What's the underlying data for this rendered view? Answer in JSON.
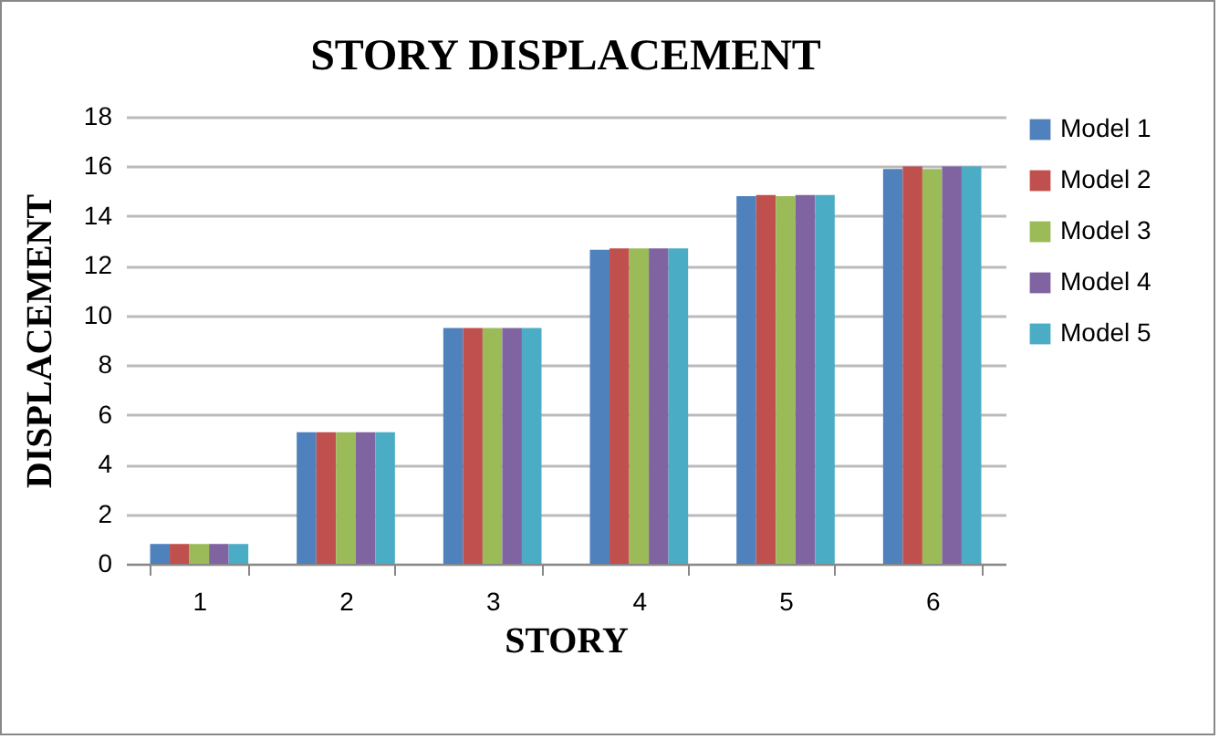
{
  "chart_data": {
    "type": "bar",
    "title": "STORY DISPLACEMENT",
    "xlabel": "STORY",
    "ylabel": "DISPLACEMENT",
    "categories": [
      "1",
      "2",
      "3",
      "4",
      "5",
      "6"
    ],
    "series": [
      {
        "name": "Model 1",
        "color": "#4f81bd",
        "values": [
          0.8,
          5.3,
          9.5,
          12.65,
          14.8,
          15.9
        ]
      },
      {
        "name": "Model 2",
        "color": "#c0504d",
        "values": [
          0.8,
          5.3,
          9.5,
          12.7,
          14.85,
          16.0
        ]
      },
      {
        "name": "Model 3",
        "color": "#9bbb59",
        "values": [
          0.8,
          5.3,
          9.5,
          12.7,
          14.8,
          15.9
        ]
      },
      {
        "name": "Model 4",
        "color": "#8064a2",
        "values": [
          0.8,
          5.3,
          9.5,
          12.7,
          14.85,
          16.0
        ]
      },
      {
        "name": "Model 5",
        "color": "#4bacc6",
        "values": [
          0.8,
          5.3,
          9.5,
          12.7,
          14.85,
          16.0
        ]
      }
    ],
    "ylim": [
      0,
      18
    ],
    "yticks": [
      0,
      2,
      4,
      6,
      8,
      10,
      12,
      14,
      16,
      18
    ],
    "grid": "y",
    "legend": "right"
  }
}
